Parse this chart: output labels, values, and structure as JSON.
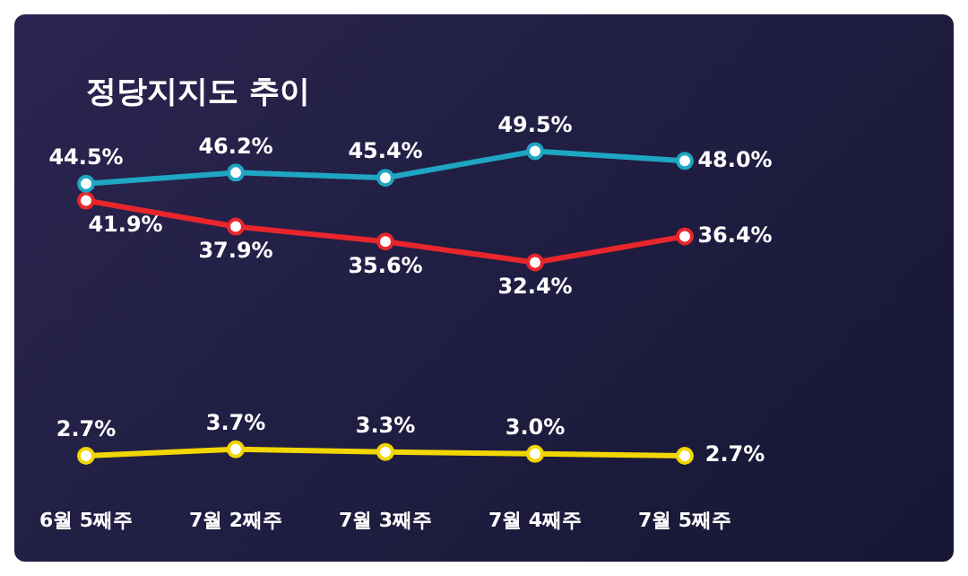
{
  "chart_data": {
    "type": "line",
    "title": "정당지지도 추이",
    "categories": [
      "6월 5째주",
      "7월 2째주",
      "7월 3째주",
      "7월 4째주",
      "7월 5째주"
    ],
    "marker": "circle",
    "line_style": "solid",
    "legend": false,
    "grid": false,
    "series": [
      {
        "color": "#1fa6c2",
        "values": [
          44.5,
          46.2,
          45.4,
          49.5,
          48.0
        ],
        "value_labels": [
          "44.5%",
          "46.2%",
          "45.4%",
          "49.5%",
          "48.0%"
        ]
      },
      {
        "color": "#e8262b",
        "values": [
          41.9,
          37.9,
          35.6,
          32.4,
          36.4
        ],
        "value_labels": [
          "41.9%",
          "37.9%",
          "35.6%",
          "32.4%",
          "36.4%"
        ]
      },
      {
        "color": "#f2d600",
        "values": [
          2.7,
          3.7,
          3.3,
          3.0,
          2.7
        ],
        "value_labels": [
          "2.7%",
          "3.7%",
          "3.3%",
          "3.0%",
          "2.7%"
        ]
      }
    ]
  }
}
